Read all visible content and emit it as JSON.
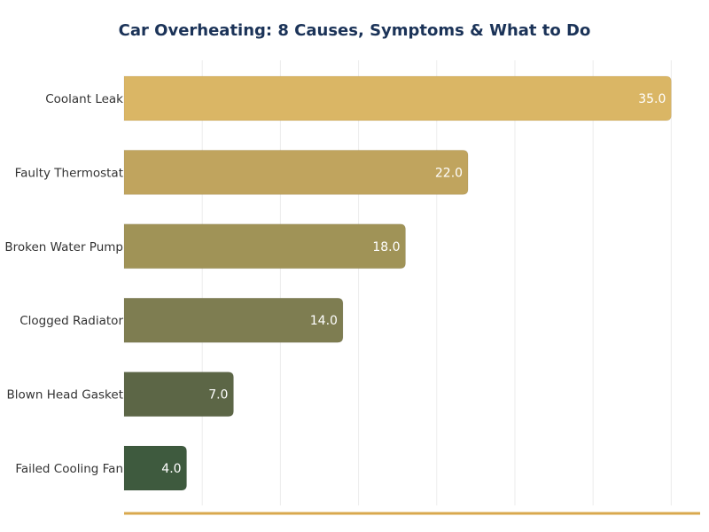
{
  "chart_data": {
    "type": "bar",
    "orientation": "horizontal",
    "title": "Car Overheating: 8 Causes, Symptoms & What to Do",
    "categories": [
      "Coolant Leak",
      "Faulty Thermostat",
      "Broken Water Pump",
      "Clogged Radiator",
      "Blown Head Gasket",
      "Failed Cooling Fan"
    ],
    "values": [
      35.0,
      22.0,
      18.0,
      14.0,
      7.0,
      4.0
    ],
    "data_labels": [
      "35.0",
      "22.0",
      "18.0",
      "14.0",
      "7.0",
      "4.0"
    ],
    "colors": [
      "#DAB665",
      "#C0A45E",
      "#A09357",
      "#7E7D51",
      "#5C6646",
      "#3E5A3E"
    ],
    "xlabel": "",
    "ylabel": "",
    "xlim": [
      0,
      36.85
    ],
    "gridlines": [
      5,
      10,
      15,
      20,
      25,
      30,
      35
    ],
    "grid": true,
    "axis_line_color": "#D9A84E"
  }
}
